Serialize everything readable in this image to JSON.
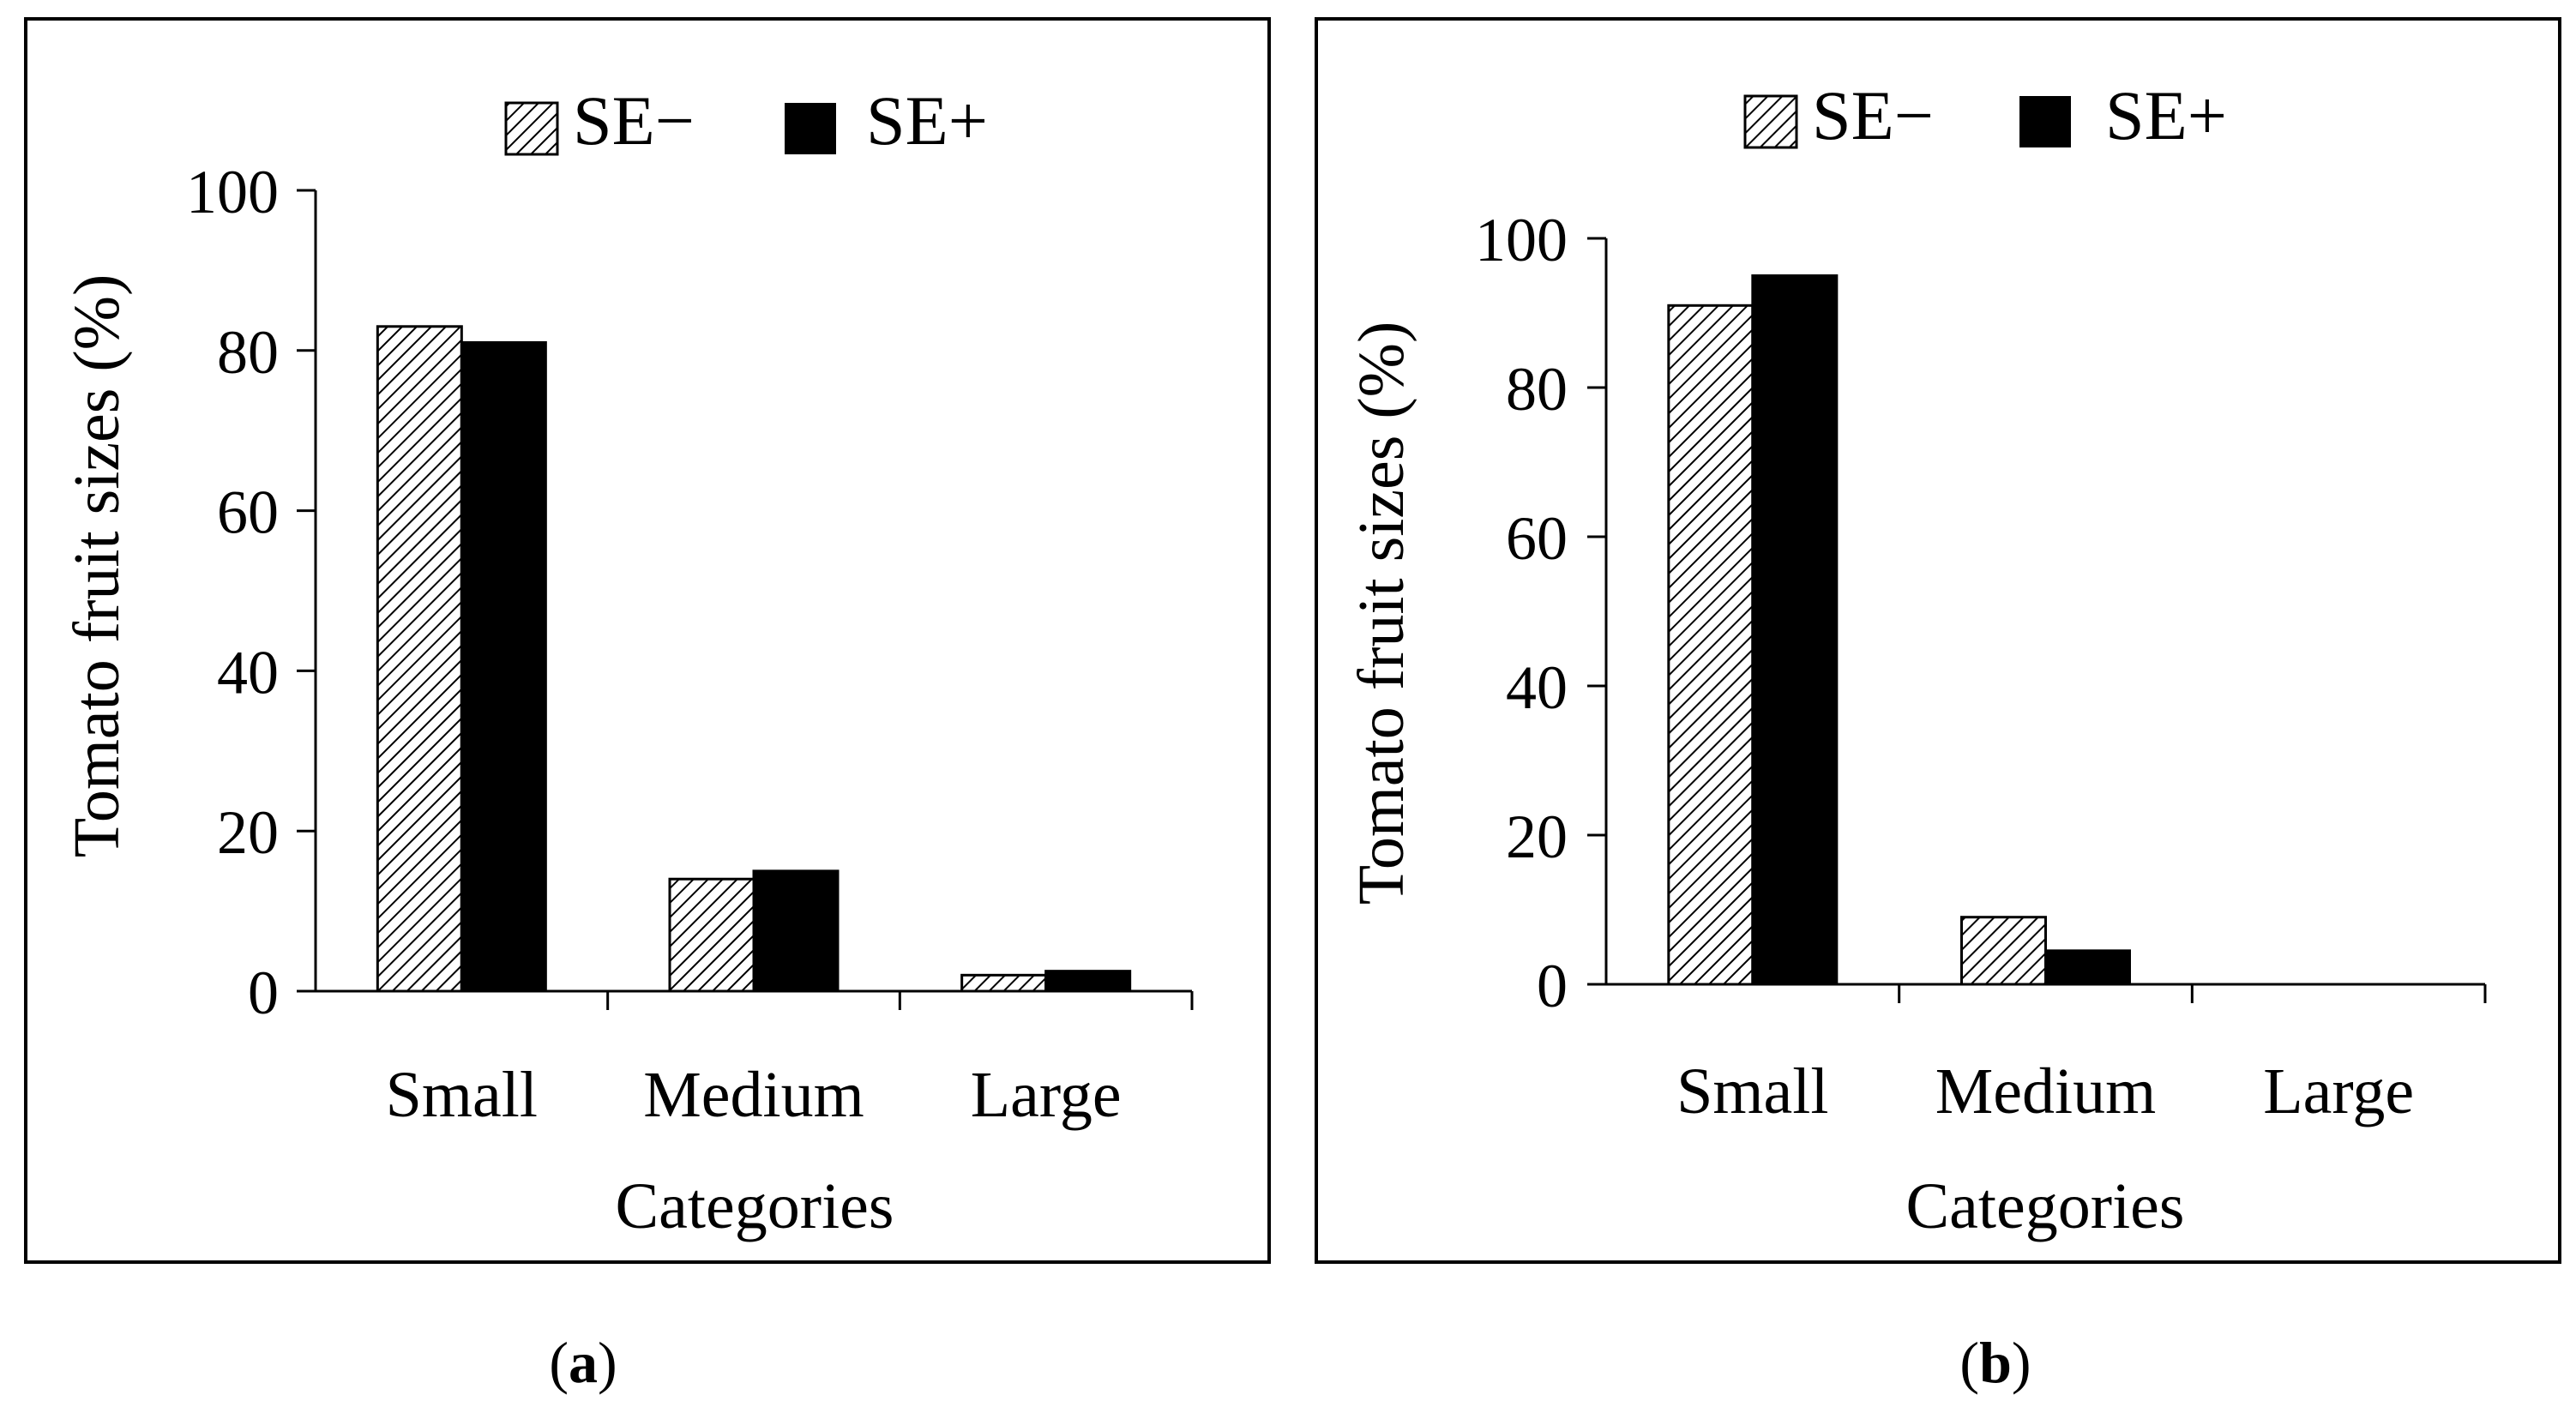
{
  "chart_data": [
    {
      "type": "bar",
      "panel_label": "a",
      "categories": [
        "Small",
        "Medium",
        "Large"
      ],
      "series": [
        {
          "name": "SE−",
          "pattern": "hatched",
          "values": [
            83,
            14,
            2
          ]
        },
        {
          "name": "SE+",
          "pattern": "solid",
          "values": [
            81,
            15,
            2.5
          ]
        }
      ],
      "xlabel": "Categories",
      "ylabel": "Tomato fruit sizes (%)",
      "ylim": [
        0,
        100
      ],
      "yticks": [
        0,
        20,
        40,
        60,
        80,
        100
      ],
      "grid": false,
      "legend_position": "top"
    },
    {
      "type": "bar",
      "panel_label": "b",
      "categories": [
        "Small",
        "Medium",
        "Large"
      ],
      "series": [
        {
          "name": "SE−",
          "pattern": "hatched",
          "values": [
            91,
            9,
            0
          ]
        },
        {
          "name": "SE+",
          "pattern": "solid",
          "values": [
            95,
            4.5,
            0
          ]
        }
      ],
      "xlabel": "Categories",
      "ylabel": "Tomato fruit sizes (%)",
      "ylim": [
        0,
        100
      ],
      "yticks": [
        0,
        20,
        40,
        60,
        80,
        100
      ],
      "grid": false,
      "legend_position": "top"
    }
  ],
  "colors": {
    "bar_fill": "#000000",
    "hatch_line": "#000000",
    "hatch_bg": "#ffffff"
  }
}
